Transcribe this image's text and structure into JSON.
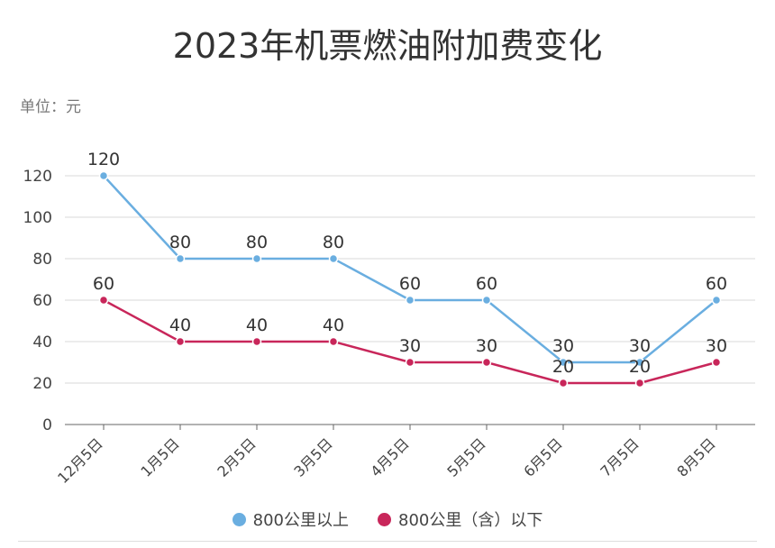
{
  "chart_data": {
    "type": "line",
    "title": "2023年机票燃油附加费变化",
    "unit_label": "单位：元",
    "categories": [
      "12月5日",
      "1月5日",
      "2月5日",
      "3月5日",
      "4月5日",
      "5月5日",
      "6月5日",
      "7月5日",
      "8月5日"
    ],
    "series": [
      {
        "name": "800公里以上",
        "color": "#6aaee0",
        "values": [
          120,
          80,
          80,
          80,
          60,
          60,
          30,
          30,
          60
        ]
      },
      {
        "name": "800公里（含）以下",
        "color": "#c8265a",
        "values": [
          60,
          40,
          40,
          40,
          30,
          30,
          20,
          20,
          30
        ]
      }
    ],
    "ylim": [
      0,
      120
    ],
    "yticks": [
      0,
      20,
      40,
      60,
      80,
      100,
      120
    ],
    "grid": true,
    "legend_position": "bottom",
    "data_labels": true
  }
}
